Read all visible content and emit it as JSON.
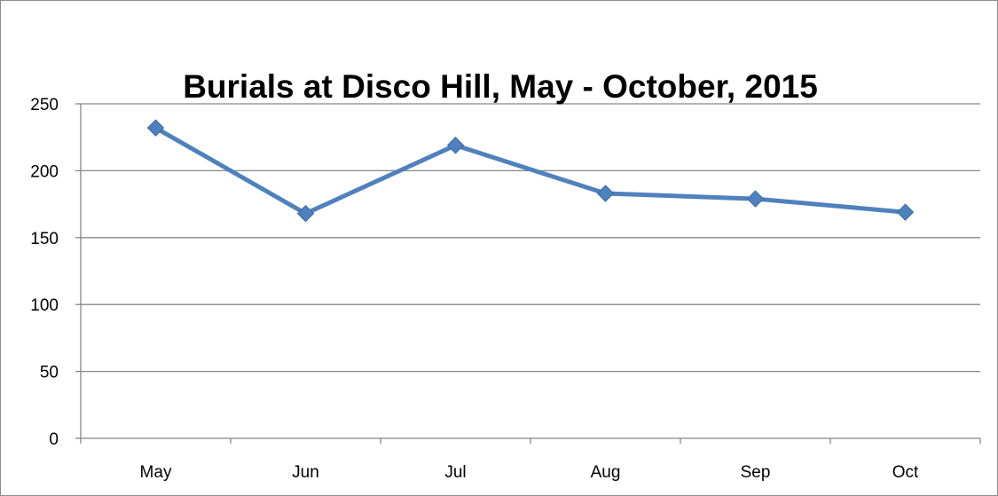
{
  "chart_data": {
    "type": "line",
    "title": "Burials at Disco Hill, May - October, 2015",
    "xlabel": "",
    "ylabel": "",
    "categories": [
      "May",
      "Jun",
      "Jul",
      "Aug",
      "Sep",
      "Oct"
    ],
    "series": [
      {
        "values": [
          232,
          168,
          219,
          183,
          179,
          169
        ],
        "color": "#4f81bd",
        "marker": "diamond"
      }
    ],
    "ylim": [
      0,
      250
    ],
    "yticks": [
      0,
      50,
      100,
      150,
      200,
      250
    ],
    "grid": true,
    "legend": "none"
  }
}
